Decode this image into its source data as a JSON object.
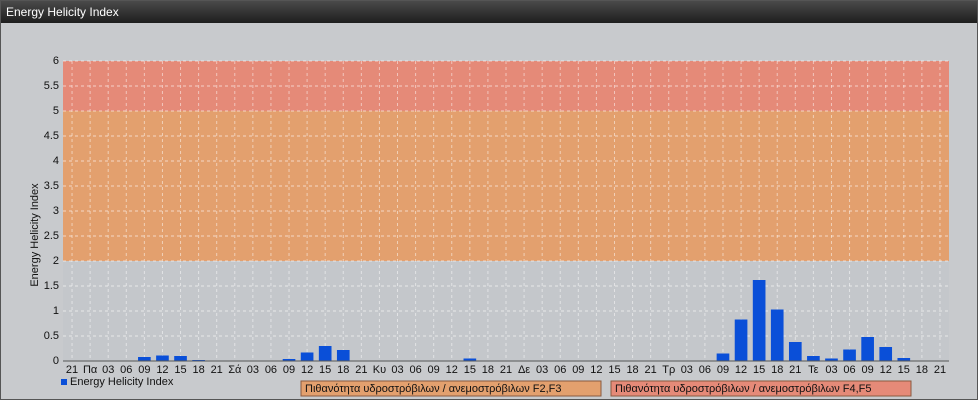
{
  "chart_data": {
    "type": "bar",
    "title": "Energy Helicity Index",
    "y_label": "Energy Helicity Index",
    "categories": [
      "21",
      "Πα",
      "03",
      "06",
      "09",
      "12",
      "15",
      "18",
      "21",
      "Σά",
      "03",
      "06",
      "09",
      "12",
      "15",
      "18",
      "21",
      "Κυ",
      "03",
      "06",
      "09",
      "12",
      "15",
      "18",
      "21",
      "Δε",
      "03",
      "06",
      "09",
      "12",
      "15",
      "18",
      "21",
      "Τρ",
      "03",
      "06",
      "09",
      "12",
      "15",
      "18",
      "21",
      "Τε",
      "03",
      "06",
      "09",
      "12",
      "15",
      "18",
      "21"
    ],
    "series": [
      {
        "name": "Energy Helicity Index",
        "color": "#0a4fd8",
        "values": [
          0.01,
          0.01,
          0.01,
          0.01,
          0.08,
          0.11,
          0.1,
          0.02,
          0.01,
          0.01,
          0.01,
          0.01,
          0.04,
          0.17,
          0.3,
          0.22,
          0.01,
          0.01,
          0.01,
          0.01,
          0.01,
          0.01,
          0.05,
          0.01,
          0.01,
          0.01,
          0.01,
          0.01,
          0.01,
          0.01,
          0.01,
          0.01,
          0.01,
          0.01,
          0.01,
          0.01,
          0.15,
          0.83,
          1.62,
          1.03,
          0.38,
          0.1,
          0.05,
          0.23,
          0.48,
          0.28,
          0.06,
          0.01,
          0.01
        ]
      }
    ],
    "bands": [
      {
        "from": 2,
        "to": 5,
        "color": "#e3a06e",
        "label": "Πιθανότητα υδροστρόβιλων / ανεμοστρόβιλων F2,F3"
      },
      {
        "from": 5,
        "to": 6,
        "color": "#e58a78",
        "label": "Πιθανότητα υδροστρόβιλων / ανεμοστρόβιλων F4,F5"
      }
    ],
    "ylim": [
      0,
      6
    ],
    "yticks": [
      0,
      0.5,
      1,
      1.5,
      2,
      2.5,
      3,
      3.5,
      4,
      4.5,
      5,
      5.5,
      6
    ],
    "grid": true
  }
}
